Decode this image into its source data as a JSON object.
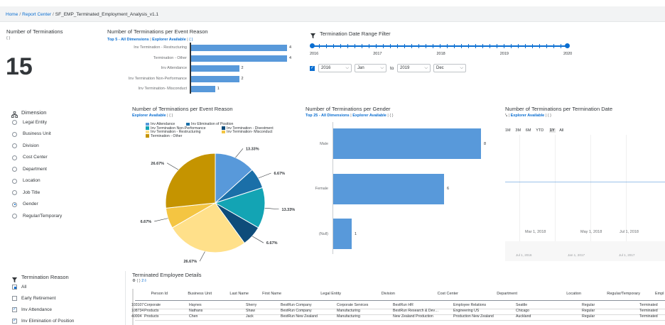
{
  "breadcrumb": {
    "home": "Home",
    "report_center": "Report Center",
    "current": "SF_EMP_Terminated_Employment_Analysis_v1.1"
  },
  "kpi": {
    "title": "Number of Terminations",
    "braces": "{ }",
    "value": "15"
  },
  "event_reason_bar": {
    "title": "Number of Terminations per Event Reason",
    "top_label": "Top 5 - All Dimensions",
    "explorer": "Explorer Available",
    "braces": "{ }",
    "chart_data": {
      "type": "bar",
      "orientation": "horizontal",
      "categories": [
        "Inv Termination - Restructuring",
        "Termination - Other",
        "Inv Attendance",
        "Inv Termination Non-Performance",
        "Inv Termination- Misconduct"
      ],
      "values": [
        4,
        4,
        2,
        2,
        1
      ],
      "xlim": [
        0,
        4
      ]
    }
  },
  "date_filter": {
    "title": "Termination Date Range Filter",
    "filter_icon": "filter-icon",
    "years": [
      "2016",
      "2017",
      "2018",
      "2019",
      "2020"
    ],
    "from_year": "2016",
    "from_month": "Jan",
    "to_label": "to",
    "to_year": "2019",
    "to_month": "Dec"
  },
  "dimension": {
    "title": "Dimension",
    "icon": "hierarchy-icon",
    "options": [
      "Legal Entity",
      "Business Unit",
      "Division",
      "Cost Center",
      "Department",
      "Location",
      "Job Title",
      "Gender",
      "Regular/Temporary"
    ],
    "selected": "Gender"
  },
  "event_reason_pie": {
    "title": "Number of Terminations per Event Reason",
    "explorer": "Explorer Available",
    "braces": "{ }",
    "legend": [
      {
        "name": "Inv Attendance",
        "color": "#5899da"
      },
      {
        "name": "Inv Elimination of Position",
        "color": "#1b6fa8"
      },
      {
        "name": "Inv Termination Non-Performance",
        "color": "#13a4b4"
      },
      {
        "name": "Inv Termination - Divestment",
        "color": "#0e4c7a"
      },
      {
        "name": "Inv Termination - Restructuring",
        "color": "#ffe08a"
      },
      {
        "name": "Inv Termination- Misconduct",
        "color": "#f4c542"
      },
      {
        "name": "Termination - Other",
        "color": "#c59400"
      }
    ],
    "chart_data": {
      "type": "pie",
      "categories": [
        "Inv Attendance",
        "Inv Elimination of Position",
        "Inv Termination Non-Performance",
        "Inv Termination - Divestment",
        "Inv Termination - Restructuring",
        "Inv Termination- Misconduct",
        "Termination - Other"
      ],
      "values": [
        13.33,
        6.67,
        13.33,
        6.67,
        26.67,
        6.67,
        26.67
      ],
      "labels": [
        "13.33%",
        "6.67%",
        "13.33%",
        "6.67%",
        "26.67%",
        "6.67%",
        "26.67%"
      ],
      "colors": [
        "#5899da",
        "#1b6fa8",
        "#13a4b4",
        "#0e4c7a",
        "#ffe08a",
        "#f4c542",
        "#c59400"
      ]
    }
  },
  "gender_bar": {
    "title": "Number of Terminations per Gender",
    "top_label": "Top 25 - All Dimensions",
    "explorer": "Explorer Available",
    "braces": "{ }",
    "chart_data": {
      "type": "bar",
      "orientation": "horizontal",
      "categories": [
        "Male",
        "Female",
        "(Null)"
      ],
      "values": [
        8,
        6,
        1
      ],
      "xlim": [
        0,
        8
      ]
    }
  },
  "date_chart": {
    "title": "Number of Terminations per Termination Date",
    "explorer": "Explorer Available",
    "braces": "{ }",
    "ranges": [
      "1M",
      "3M",
      "6M",
      "YTD",
      "1Y",
      "All"
    ],
    "active_range": "1Y",
    "x_ticks": [
      "Mar 1, 2018",
      "May 1, 2018",
      "Jul 1, 2018"
    ],
    "nav_ticks": [
      "Jul 1, 2016",
      "Jan 1, 2017",
      "Jul 1, 2017"
    ]
  },
  "termination_reason": {
    "title": "Termination Reason",
    "icon": "filter-icon",
    "items": [
      {
        "label": "All",
        "state": "partial"
      },
      {
        "label": "Early Retirement",
        "state": "off"
      },
      {
        "label": "Inv Attendance",
        "state": "on"
      },
      {
        "label": "Inv Elimination of Position",
        "state": "on"
      }
    ]
  },
  "details": {
    "title": "Terminated Employee Details",
    "tool_icons": [
      "filter-icon",
      "braces-icon",
      "export-icon"
    ],
    "tool_text": {
      "braces": "{ }",
      "count": "2"
    },
    "columns": [
      "Person Id",
      "Business Unit",
      "Last Name",
      "First Name",
      "Legal Entity",
      "Division",
      "Cost Center",
      "Department",
      "Location",
      "Regular/Temporary",
      "Empl"
    ],
    "rows": [
      [
        "103107",
        "Corporate",
        "Haynes",
        "Sherry",
        "BestRun Company",
        "Corporate Services",
        "BestRun HR",
        "Employee Relations",
        "Seattle",
        "Regular",
        "Terminated"
      ],
      [
        "108734",
        "Products",
        "Nathans",
        "Shaw",
        "BestRun Company",
        "Manufacturing",
        "BestRun Research & Dev…",
        "Engineering US",
        "Chicago",
        "Regular",
        "Terminated"
      ],
      [
        "40004",
        "Products",
        "Chen",
        "Jack",
        "BestRun New Zealand",
        "Manufacturing",
        "New Zealand Production",
        "Production New Zealand",
        "Auckland",
        "Regular",
        "Terminated"
      ]
    ]
  }
}
